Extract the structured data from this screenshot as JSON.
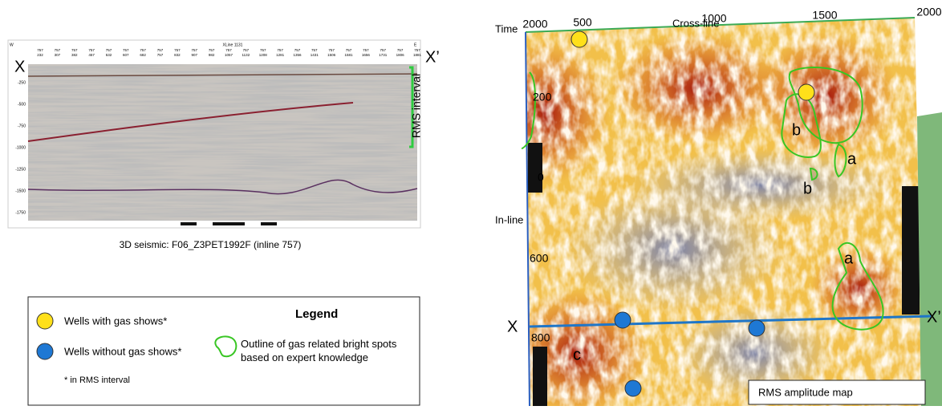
{
  "seismic": {
    "side_w": "W",
    "side_e": "E",
    "xline": "XLine 1131",
    "inline_row": [
      "757",
      "757",
      "757",
      "757",
      "757",
      "757",
      "757",
      "757",
      "757",
      "757",
      "757",
      "757",
      "757",
      "757",
      "757",
      "757",
      "757",
      "757",
      "757",
      "757",
      "757",
      "757",
      "757"
    ],
    "crossline_row": [
      "232",
      "307",
      "382",
      "457",
      "532",
      "607",
      "682",
      "757",
      "832",
      "907",
      "982",
      "1057",
      "1132",
      "1208",
      "1281",
      "1356",
      "1431",
      "1506",
      "1581",
      "1656",
      "1731",
      "1806",
      "1881"
    ],
    "depth_labels": [
      "-250",
      "-500",
      "-750",
      "-1000",
      "-1250",
      "-1500",
      "-1750"
    ],
    "x_left": "X",
    "x_right": "X’",
    "rms_interval": "RMS interval",
    "caption": "3D seismic: F06_Z3PET1992F (inline 757)"
  },
  "legend": {
    "title": "Legend",
    "gas": "Wells with gas shows*",
    "no_gas": "Wells without gas shows*",
    "note": "* in RMS interval",
    "outline": "Outline of gas related bright spots based on expert knowledge"
  },
  "map": {
    "time": "Time",
    "cross_line": "Cross-line",
    "in_line": "In-line",
    "top_labels": [
      "2000",
      "500",
      "1000",
      "1500",
      "2000"
    ],
    "left_labels": [
      "200",
      "0",
      "600",
      "800"
    ],
    "areas": [
      "a",
      "b",
      "b",
      "a",
      "c"
    ],
    "x_left": "X",
    "x_right": "X’",
    "title": "RMS amplitude map"
  }
}
